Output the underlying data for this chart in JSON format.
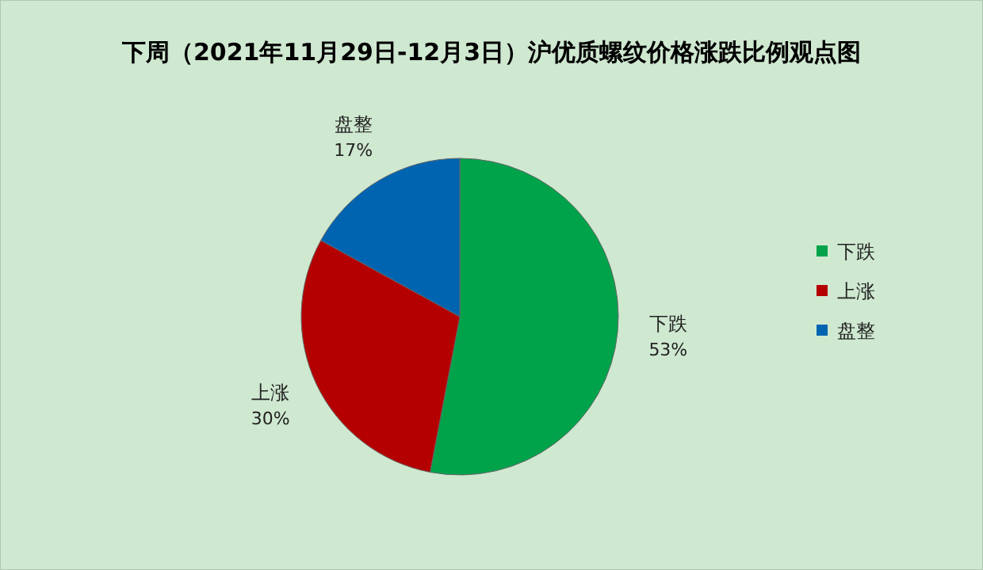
{
  "chart_data": {
    "type": "pie",
    "title": "下周（2021年11月29日-12月3日）沪优质螺纹价格涨跌比例观点图",
    "categories": [
      "下跌",
      "上涨",
      "盘整"
    ],
    "values": [
      53,
      30,
      17
    ],
    "value_labels": [
      "53%",
      "30%",
      "17%"
    ],
    "colors": [
      "#00a34a",
      "#b40000",
      "#0064b0"
    ],
    "legend": "right"
  }
}
